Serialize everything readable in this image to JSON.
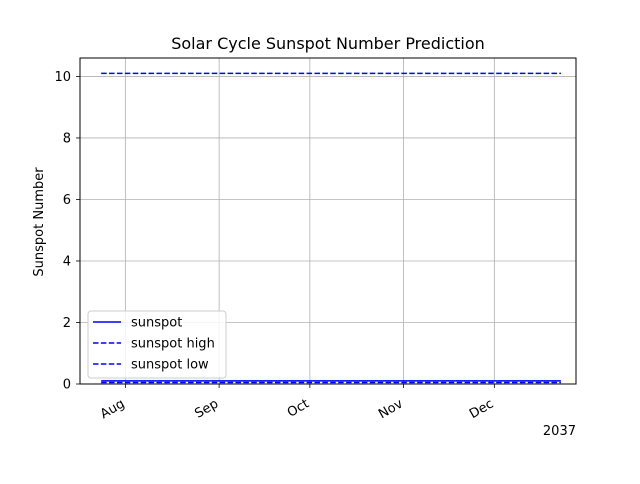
{
  "chart_data": {
    "type": "line",
    "title": "Solar Cycle Sunspot Number Prediction",
    "xlabel": "",
    "ylabel": "Sunspot Number",
    "x_ticks": [
      "Aug",
      "Sep",
      "Oct",
      "Nov",
      "Dec"
    ],
    "x_tick_dates": [
      "2037-08-01",
      "2037-09-01",
      "2037-10-01",
      "2037-11-01",
      "2037-12-01"
    ],
    "x_offset_label": "2037",
    "xlim": [
      "2037-07-17",
      "2037-12-28"
    ],
    "ylim": [
      0,
      10.6
    ],
    "y_ticks": [
      0,
      2,
      4,
      6,
      8,
      10
    ],
    "grid": true,
    "legend_position": "lower-left",
    "series": [
      {
        "name": "sunspot",
        "style": "solid",
        "color": "#0000ff",
        "x": [
          "2037-07-24",
          "2037-12-23"
        ],
        "y": [
          0.1,
          0.1
        ]
      },
      {
        "name": "sunspot high",
        "style": "dashed",
        "color": "#0000ff",
        "x": [
          "2037-07-24",
          "2037-12-23"
        ],
        "y": [
          10.1,
          10.1
        ]
      },
      {
        "name": "sunspot low",
        "style": "dashed",
        "color": "#0000ff",
        "x": [
          "2037-07-24",
          "2037-12-23"
        ],
        "y": [
          0.05,
          0.05
        ]
      }
    ]
  }
}
